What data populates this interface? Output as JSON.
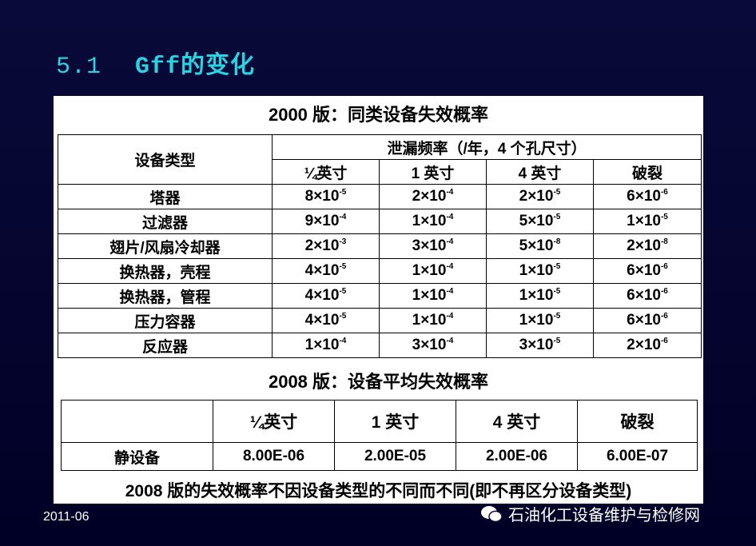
{
  "title": {
    "number": "5.1",
    "text": "Gff的变化"
  },
  "table_2000": {
    "caption": "2000 版：同类设备失效概率",
    "header": {
      "type": "设备类型",
      "group": "泄漏频率（/年，4 个孔尺寸）",
      "columns": [
        "¼英寸",
        "1 英寸",
        "4 英寸",
        "破裂"
      ]
    },
    "rows": [
      {
        "name": "塔器",
        "values": [
          {
            "m": "8×10",
            "e": "-5"
          },
          {
            "m": "2×10",
            "e": "-4"
          },
          {
            "m": "2×10",
            "e": "-5"
          },
          {
            "m": "6×10",
            "e": "-6"
          }
        ]
      },
      {
        "name": "过滤器",
        "values": [
          {
            "m": "9×10",
            "e": "-4"
          },
          {
            "m": "1×10",
            "e": "-4"
          },
          {
            "m": "5×10",
            "e": "-5"
          },
          {
            "m": "1×10",
            "e": "-5"
          }
        ]
      },
      {
        "name": "翅片/风扇冷却器",
        "values": [
          {
            "m": "2×10",
            "e": "-3"
          },
          {
            "m": "3×10",
            "e": "-4"
          },
          {
            "m": "5×10",
            "e": "-8"
          },
          {
            "m": "2×10",
            "e": "-8"
          }
        ]
      },
      {
        "name": "换热器，壳程",
        "values": [
          {
            "m": "4×10",
            "e": "-5"
          },
          {
            "m": "1×10",
            "e": "-4"
          },
          {
            "m": "1×10",
            "e": "-5"
          },
          {
            "m": "6×10",
            "e": "-6"
          }
        ]
      },
      {
        "name": "换热器，管程",
        "values": [
          {
            "m": "4×10",
            "e": "-5"
          },
          {
            "m": "1×10",
            "e": "-4"
          },
          {
            "m": "1×10",
            "e": "-5"
          },
          {
            "m": "6×10",
            "e": "-6"
          }
        ]
      },
      {
        "name": "压力容器",
        "values": [
          {
            "m": "4×10",
            "e": "-5"
          },
          {
            "m": "1×10",
            "e": "-4"
          },
          {
            "m": "1×10",
            "e": "-5"
          },
          {
            "m": "6×10",
            "e": "-6"
          }
        ]
      },
      {
        "name": "反应器",
        "values": [
          {
            "m": "1×10",
            "e": "-4"
          },
          {
            "m": "3×10",
            "e": "-4"
          },
          {
            "m": "3×10",
            "e": "-5"
          },
          {
            "m": "2×10",
            "e": "-6"
          }
        ]
      }
    ]
  },
  "table_2008": {
    "caption": "2008 版：设备平均失效概率",
    "columns": [
      "¼英寸",
      "1 英寸",
      "4 英寸",
      "破裂"
    ],
    "rows": [
      {
        "name": "静设备",
        "values": [
          "8.00E-06",
          "2.00E-05",
          "2.00E-06",
          "6.00E-07"
        ]
      }
    ]
  },
  "footer": "2008 版的失效概率不因设备类型的不同而不同(即不再区分设备类型)",
  "date": "2011-06",
  "watermark": "石油化工设备维护与检修网"
}
